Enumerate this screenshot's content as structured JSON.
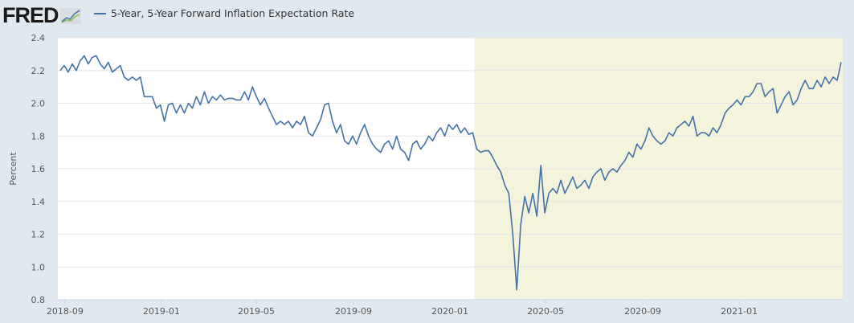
{
  "logo": {
    "text": "FRED"
  },
  "legend": {
    "label": "5-Year, 5-Year Forward Inflation Expectation Rate",
    "icon": "graph-icon"
  },
  "colors": {
    "line": "#4572a7",
    "recession_shade": "#f4f4dc",
    "plot_bg": "#ffffff",
    "page_bg": "#e1e9f0"
  },
  "chart_data": {
    "type": "line",
    "title": "",
    "xlabel": "",
    "ylabel": "Percent",
    "xlim": [
      "2018-08-23",
      "2021-05-12"
    ],
    "ylim": [
      0.8,
      2.4
    ],
    "grid": true,
    "legend_position": "top-left",
    "y_ticks": [
      "0.8",
      "1.0",
      "1.2",
      "1.4",
      "1.6",
      "1.8",
      "2.0",
      "2.2",
      "2.4"
    ],
    "x_ticks": [
      "2018-09",
      "2019-01",
      "2019-05",
      "2019-09",
      "2020-01",
      "2020-05",
      "2020-09",
      "2021-01"
    ],
    "recession_shading": {
      "start": "2020-02",
      "end": "2021-05-12"
    },
    "series": [
      {
        "name": "5-Year, 5-Year Forward Inflation Expectation Rate",
        "x_start": "2018-08-26",
        "x_end": "2021-05-10",
        "values": [
          2.2,
          2.23,
          2.19,
          2.24,
          2.2,
          2.26,
          2.29,
          2.24,
          2.28,
          2.29,
          2.24,
          2.21,
          2.25,
          2.19,
          2.21,
          2.23,
          2.16,
          2.14,
          2.16,
          2.14,
          2.16,
          2.04,
          2.04,
          2.04,
          1.97,
          1.99,
          1.89,
          1.99,
          2.0,
          1.94,
          1.99,
          1.94,
          2.0,
          1.97,
          2.04,
          1.99,
          2.07,
          2.0,
          2.04,
          2.02,
          2.05,
          2.02,
          2.03,
          2.03,
          2.02,
          2.02,
          2.07,
          2.02,
          2.1,
          2.04,
          1.99,
          2.03,
          1.97,
          1.92,
          1.87,
          1.89,
          1.87,
          1.89,
          1.85,
          1.89,
          1.87,
          1.92,
          1.82,
          1.8,
          1.85,
          1.9,
          1.99,
          2.0,
          1.89,
          1.82,
          1.87,
          1.77,
          1.75,
          1.8,
          1.75,
          1.82,
          1.87,
          1.8,
          1.75,
          1.72,
          1.7,
          1.75,
          1.77,
          1.72,
          1.8,
          1.72,
          1.7,
          1.65,
          1.75,
          1.77,
          1.72,
          1.75,
          1.8,
          1.77,
          1.82,
          1.85,
          1.8,
          1.87,
          1.84,
          1.87,
          1.82,
          1.85,
          1.81,
          1.82,
          1.72,
          1.7,
          1.71,
          1.71,
          1.67,
          1.62,
          1.58,
          1.5,
          1.45,
          1.2,
          0.86,
          1.26,
          1.43,
          1.33,
          1.45,
          1.31,
          1.62,
          1.33,
          1.45,
          1.48,
          1.45,
          1.53,
          1.45,
          1.5,
          1.55,
          1.48,
          1.5,
          1.53,
          1.48,
          1.55,
          1.58,
          1.6,
          1.53,
          1.58,
          1.6,
          1.58,
          1.62,
          1.65,
          1.7,
          1.67,
          1.75,
          1.72,
          1.77,
          1.85,
          1.8,
          1.77,
          1.75,
          1.77,
          1.82,
          1.8,
          1.85,
          1.87,
          1.89,
          1.86,
          1.92,
          1.8,
          1.82,
          1.82,
          1.8,
          1.85,
          1.82,
          1.87,
          1.94,
          1.97,
          1.99,
          2.02,
          1.99,
          2.04,
          2.04,
          2.07,
          2.12,
          2.12,
          2.04,
          2.07,
          2.09,
          1.94,
          1.99,
          2.04,
          2.07,
          1.99,
          2.02,
          2.09,
          2.14,
          2.09,
          2.09,
          2.14,
          2.1,
          2.16,
          2.12,
          2.16,
          2.14,
          2.25
        ]
      }
    ]
  }
}
